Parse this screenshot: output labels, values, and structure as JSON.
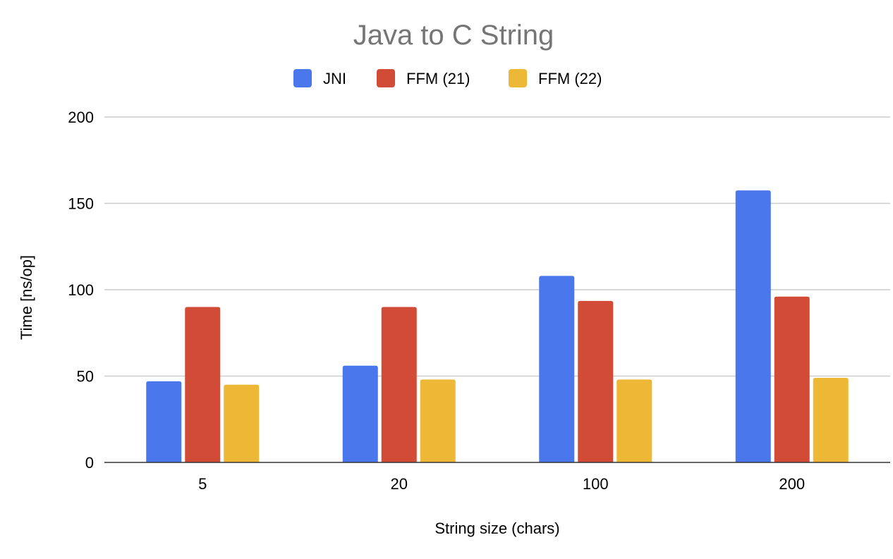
{
  "chart_data": {
    "type": "bar",
    "title": "Java to C String",
    "xlabel": "String size (chars)",
    "ylabel": "Time [ns/op]",
    "categories": [
      "5",
      "20",
      "100",
      "200"
    ],
    "series": [
      {
        "name": "JNI",
        "color": "#4a78ec",
        "values": [
          47,
          56,
          108,
          157.5
        ]
      },
      {
        "name": "FFM (21)",
        "color": "#d24b37",
        "values": [
          90,
          90,
          93.5,
          96
        ]
      },
      {
        "name": "FFM (22)",
        "color": "#eeb837",
        "values": [
          45,
          48,
          48,
          49
        ]
      }
    ],
    "ylim": [
      0,
      200
    ],
    "yticks": [
      "0",
      "50",
      "100",
      "150",
      "200"
    ],
    "grid": true,
    "legend_position": "top"
  }
}
